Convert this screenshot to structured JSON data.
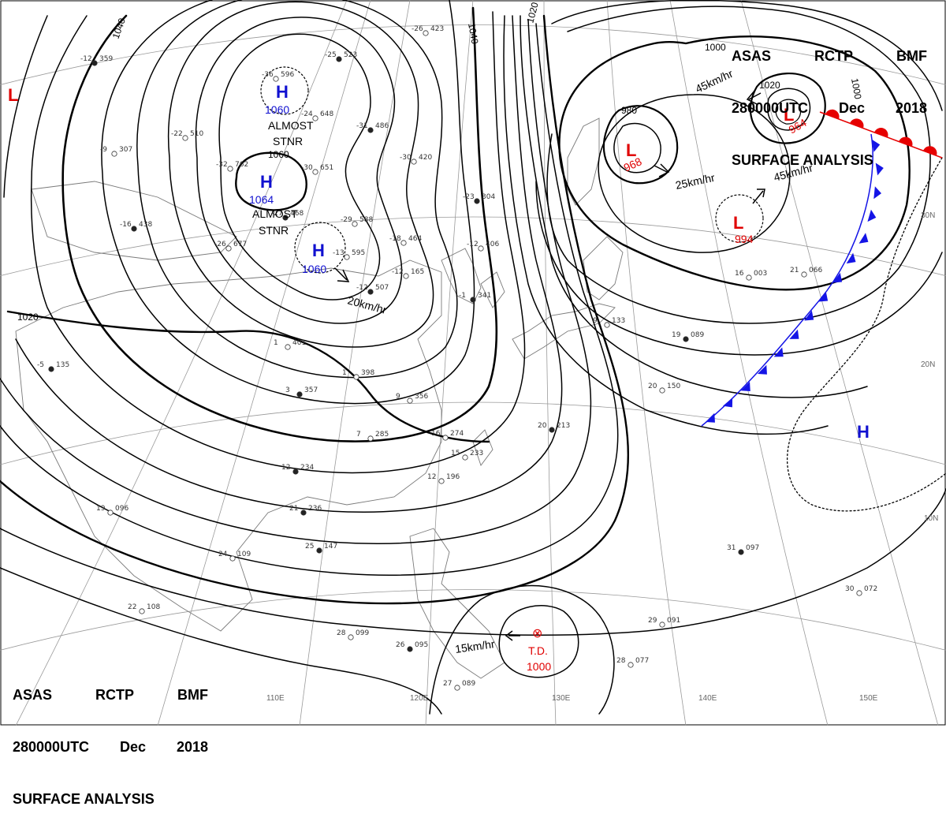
{
  "header": {
    "agency": [
      "ASAS",
      "RCTP",
      "BMF"
    ],
    "datetime": [
      "280000UTC",
      "Dec",
      "2018"
    ],
    "title": "SURFACE ANALYSIS"
  },
  "colors": {
    "isobar": "#000000",
    "high": "#1010d0",
    "low": "#e00000",
    "cold_front": "#1414e6",
    "warm_front": "#e60000",
    "grid": "#9a9a9a",
    "coast": "#7a7a7a"
  },
  "isobar_labels": [
    "1040",
    "1040",
    "1020",
    "1020",
    "1000",
    "1000",
    "980",
    "1060",
    "1020"
  ],
  "pressure_centers": [
    {
      "type": "H",
      "value": "1060",
      "note": [
        "ALMOST",
        "STNR"
      ]
    },
    {
      "type": "H",
      "value": "1064",
      "note": [
        "ALMOST",
        "STNR"
      ]
    },
    {
      "type": "H",
      "value": "1060",
      "note": []
    },
    {
      "type": "L",
      "value": "968",
      "note": []
    },
    {
      "type": "L",
      "value": "964",
      "note": []
    },
    {
      "type": "L",
      "value": "994",
      "note": []
    },
    {
      "type": "H",
      "value": "",
      "note": []
    },
    {
      "type": "L",
      "value": "",
      "note": []
    }
  ],
  "motion_labels": [
    "20km/hr",
    "25km/hr",
    "45km/hr",
    "45km/hr",
    "15km/hr"
  ],
  "tropical_depression": {
    "label": "T.D.",
    "pressure": "1000"
  },
  "longitudes": [
    "110E",
    "120E",
    "130E",
    "140E",
    "150E"
  ],
  "latitudes": [
    "30N",
    "20N",
    "10N"
  ],
  "station_plots": [
    [
      "359",
      "-12"
    ],
    [
      "307",
      "-9"
    ],
    [
      "510",
      "-22"
    ],
    [
      "438",
      "-16"
    ],
    [
      "677",
      "-26"
    ],
    [
      "596",
      "-36"
    ],
    [
      "523",
      "-25"
    ],
    [
      "423",
      "-26"
    ],
    [
      "648",
      "-24"
    ],
    [
      "486",
      "-31"
    ],
    [
      "762",
      "-32"
    ],
    [
      "651",
      "-30"
    ],
    [
      "468",
      "-27"
    ],
    [
      "588",
      "-29"
    ],
    [
      "595",
      "-13"
    ],
    [
      "507",
      "-12"
    ],
    [
      "464",
      "-18"
    ],
    [
      "406",
      "-12"
    ],
    [
      "304",
      "-23"
    ],
    [
      "420",
      "-30"
    ],
    [
      "165",
      "-12"
    ],
    [
      "341",
      "-1"
    ],
    [
      "401",
      "1"
    ],
    [
      "398",
      "1"
    ],
    [
      "357",
      "3"
    ],
    [
      "356",
      "9"
    ],
    [
      "285",
      "7"
    ],
    [
      "234",
      "12"
    ],
    [
      "196",
      "12"
    ],
    [
      "233",
      "15"
    ],
    [
      "213",
      "20"
    ],
    [
      "150",
      "20"
    ],
    [
      "133",
      "9"
    ],
    [
      "089",
      "19"
    ],
    [
      "003",
      "16"
    ],
    [
      "066",
      "21"
    ],
    [
      "135",
      "-5"
    ],
    [
      "096",
      "19"
    ],
    [
      "109",
      "24"
    ],
    [
      "147",
      "25"
    ],
    [
      "108",
      "22"
    ],
    [
      "099",
      "28"
    ],
    [
      "095",
      "26"
    ],
    [
      "089",
      "27"
    ],
    [
      "077",
      "28"
    ],
    [
      "097",
      "31"
    ],
    [
      "072",
      "30"
    ],
    [
      "091",
      "29"
    ],
    [
      "236",
      "21"
    ],
    [
      "274",
      "16"
    ]
  ]
}
